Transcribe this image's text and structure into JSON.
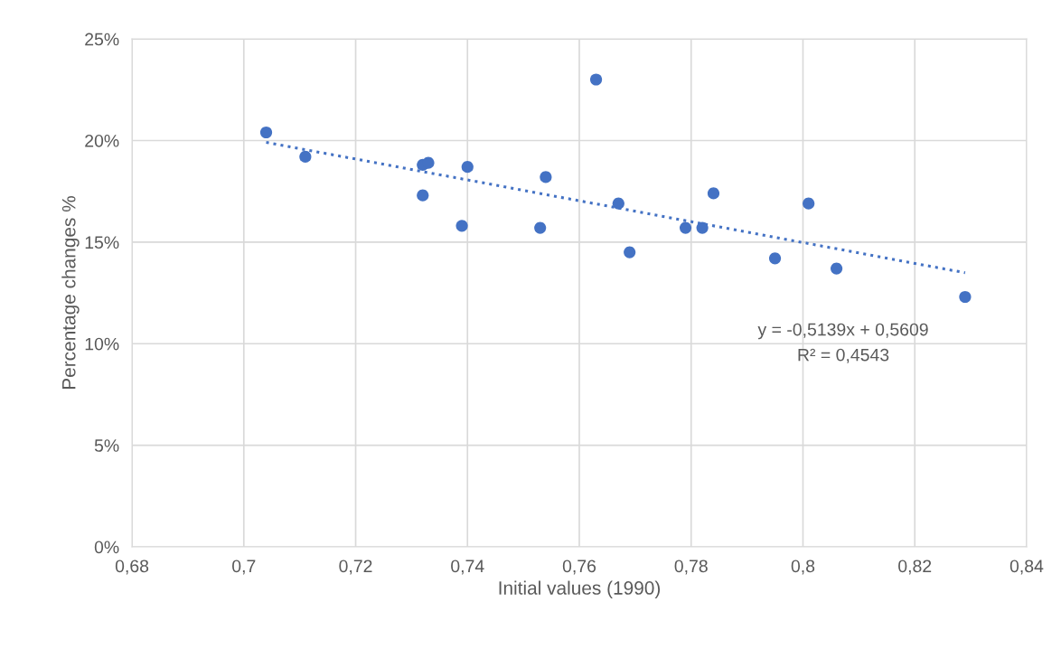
{
  "chart_data": {
    "type": "scatter",
    "xlabel": "Initial values (1990)",
    "ylabel": "Percentage changes %",
    "xlim": [
      0.68,
      0.84
    ],
    "xticks": [
      {
        "value": 0.68,
        "label": "0,68"
      },
      {
        "value": 0.7,
        "label": "0,7"
      },
      {
        "value": 0.72,
        "label": "0,72"
      },
      {
        "value": 0.74,
        "label": "0,74"
      },
      {
        "value": 0.76,
        "label": "0,76"
      },
      {
        "value": 0.78,
        "label": "0,78"
      },
      {
        "value": 0.8,
        "label": "0,8"
      },
      {
        "value": 0.82,
        "label": "0,82"
      },
      {
        "value": 0.84,
        "label": "0,84"
      }
    ],
    "ylim": [
      0,
      25
    ],
    "yticks": [
      {
        "value": 0,
        "label": "0%"
      },
      {
        "value": 5,
        "label": "5%"
      },
      {
        "value": 10,
        "label": "10%"
      },
      {
        "value": 15,
        "label": "15%"
      },
      {
        "value": 20,
        "label": "20%"
      },
      {
        "value": 25,
        "label": "25%"
      }
    ],
    "grid": true,
    "marker": "circle",
    "series": [
      {
        "color": "#4472c4",
        "x": [
          0.704,
          0.711,
          0.732,
          0.733,
          0.732,
          0.74,
          0.739,
          0.753,
          0.754,
          0.763,
          0.767,
          0.769,
          0.779,
          0.782,
          0.784,
          0.795,
          0.801,
          0.806,
          0.829
        ],
        "values": [
          20.4,
          19.2,
          18.8,
          18.9,
          17.3,
          18.7,
          15.8,
          15.7,
          18.2,
          23.0,
          16.9,
          14.5,
          15.7,
          15.7,
          17.4,
          14.2,
          16.9,
          13.7,
          12.3
        ]
      },
      {
        "type": "line",
        "color": "#4472c4",
        "line_style": "dotted",
        "marker": "none",
        "x": [
          0.704,
          0.829
        ],
        "values": [
          19.91,
          13.49
        ]
      }
    ],
    "annotations": [
      "y = -0,5139x + 0,5609",
      "R² = 0,4543"
    ]
  }
}
